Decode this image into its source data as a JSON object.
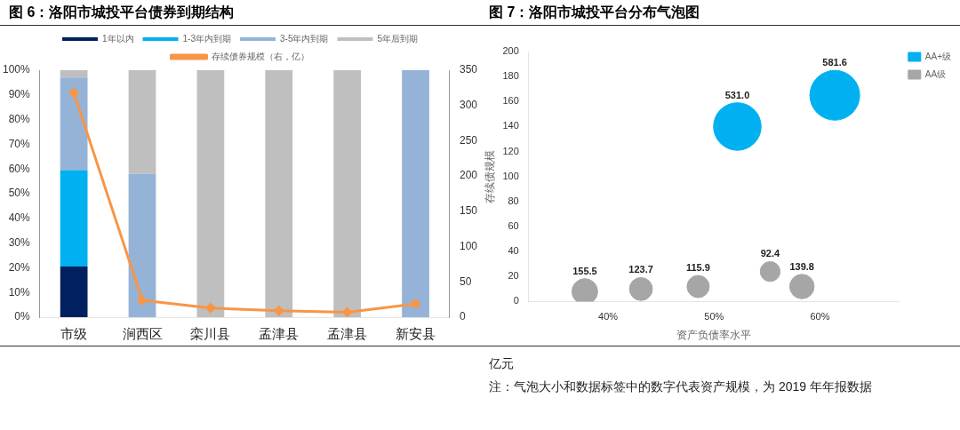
{
  "chart_data": [
    {
      "type": "bar",
      "title": "图 6：洛阳市城投平台债券到期结构",
      "categories": [
        "市级",
        "涧西区",
        "栾川县",
        "孟津县",
        "孟津县",
        "新安县"
      ],
      "stacked": true,
      "legend": "top",
      "grid": false,
      "series": [
        {
          "name": "1年以内",
          "color": "#002060",
          "values": [
            20.5,
            0,
            0,
            0,
            0,
            0
          ]
        },
        {
          "name": "1-3年内到期",
          "color": "#00b0f0",
          "values": [
            39,
            0,
            0,
            0,
            0,
            0
          ]
        },
        {
          "name": "3-5年内到期",
          "color": "#95b3d7",
          "values": [
            37.5,
            58,
            0,
            0,
            0,
            100
          ]
        },
        {
          "name": "5年后到期",
          "color": "#bfbfbf",
          "values": [
            3,
            42,
            100,
            100,
            100,
            0
          ]
        },
        {
          "name": "存续债券规模（右，亿）",
          "color": "#f79646",
          "type": "line",
          "axis": "y2",
          "marker": "diamond",
          "values": [
            318,
            24,
            13,
            9,
            7,
            19
          ]
        }
      ],
      "ylim": [
        0,
        100
      ],
      "yticks": [
        {
          "value": 0,
          "label": "0%"
        },
        {
          "value": 10,
          "label": "10%"
        },
        {
          "value": 20,
          "label": "20%"
        },
        {
          "value": 30,
          "label": "30%"
        },
        {
          "value": 40,
          "label": "40%"
        },
        {
          "value": 50,
          "label": "50%"
        },
        {
          "value": 60,
          "label": "60%"
        },
        {
          "value": 70,
          "label": "70%"
        },
        {
          "value": 80,
          "label": "80%"
        },
        {
          "value": 90,
          "label": "90%"
        },
        {
          "value": 100,
          "label": "100%"
        }
      ],
      "y2lim": [
        0,
        350
      ],
      "y2ticks": [
        0,
        50,
        100,
        150,
        200,
        250,
        300,
        350
      ]
    },
    {
      "type": "bubble",
      "title": "图 7：洛阳市城投平台分布气泡图",
      "xlabel": "资产负债率水平",
      "ylabel": "存续债规模",
      "legend": "top right",
      "grid": false,
      "series": [
        {
          "name": "AA+级",
          "color": "#00b0f0",
          "x": [
            52.2,
            61.4
          ],
          "values": [
            140,
            165
          ],
          "sizes": [
            531.0,
            581.6
          ],
          "value_labels": [
            "531.0",
            "581.6"
          ]
        },
        {
          "name": "AA级",
          "color": "#a6a6a6",
          "x": [
            37.8,
            43.1,
            48.5,
            55.3,
            58.3
          ],
          "values": [
            8,
            10,
            12,
            24,
            12
          ],
          "sizes": [
            155.5,
            123.7,
            115.9,
            92.4,
            139.8
          ],
          "value_labels": [
            "155.5",
            "123.7",
            "115.9",
            "92.4",
            "139.8"
          ]
        }
      ],
      "xlim": [
        32.5,
        67.5
      ],
      "xticks": [
        {
          "value": 40,
          "label": "40%"
        },
        {
          "value": 50,
          "label": "50%"
        },
        {
          "value": 60,
          "label": "60%"
        }
      ],
      "ylim": [
        0,
        200
      ],
      "yticks": [
        0,
        20,
        40,
        60,
        80,
        100,
        120,
        140,
        160,
        180,
        200
      ],
      "annotations": [
        "亿元",
        "注：气泡大小和数据标签中的数字代表资产规模，为 2019 年年报数据"
      ]
    }
  ]
}
